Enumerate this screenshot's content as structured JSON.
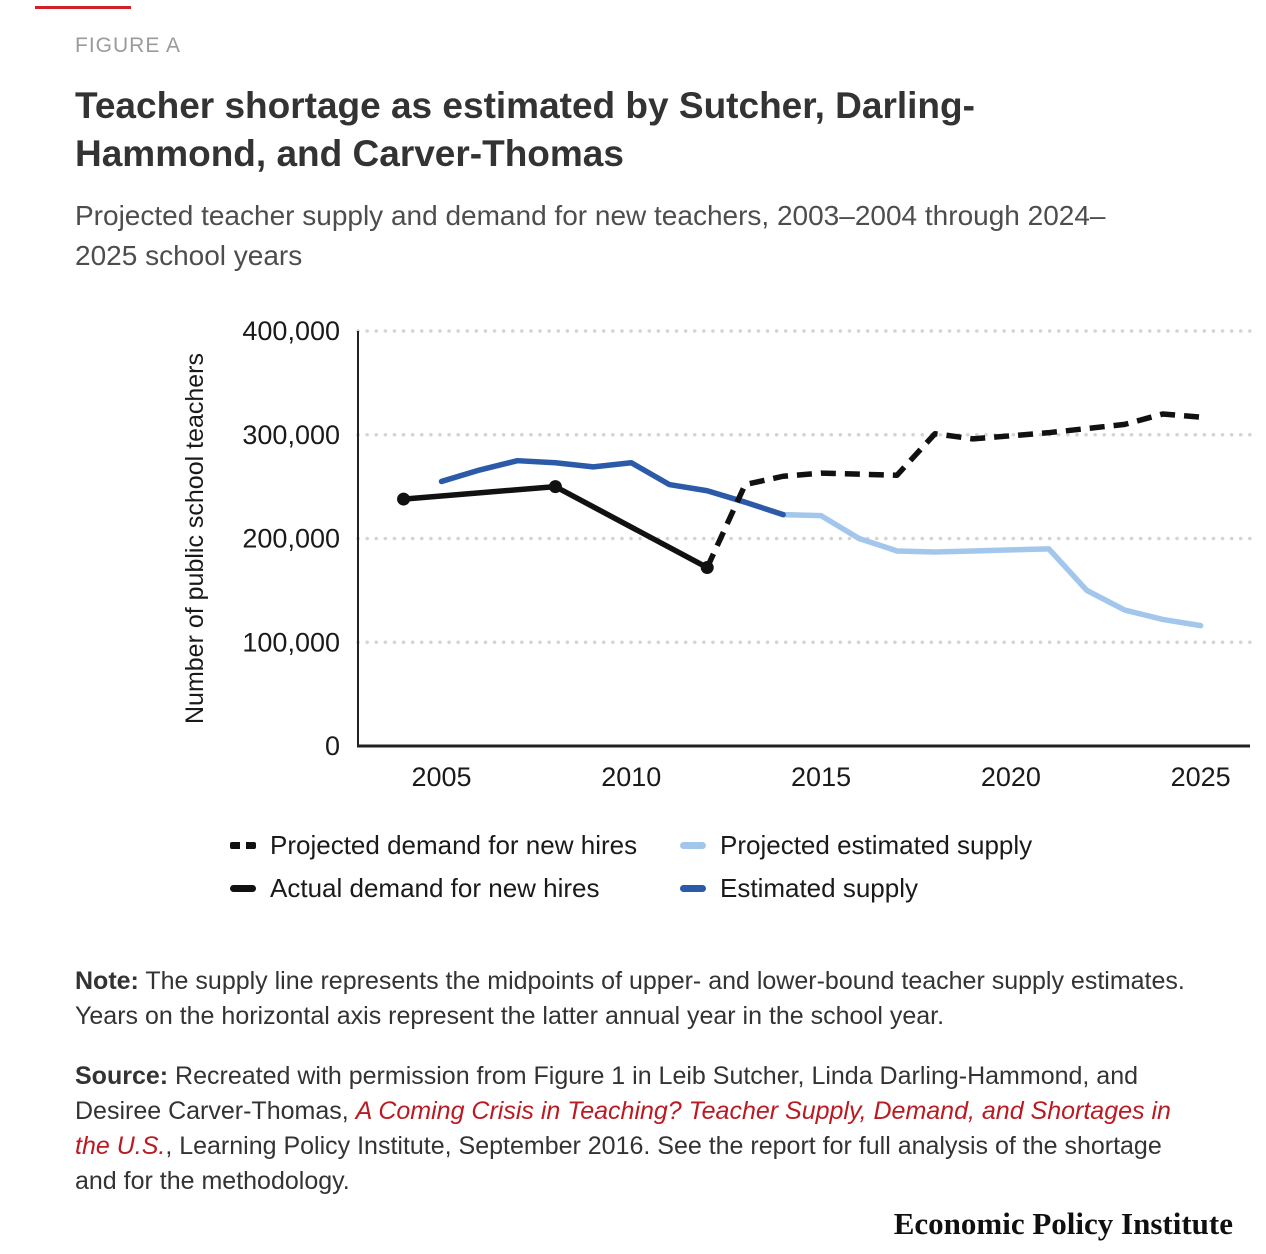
{
  "page": {
    "figure_label": "FIGURE A",
    "title": "Teacher shortage as estimated by Sutcher, Darling-Hammond, and Carver-Thomas",
    "subtitle": "Projected teacher supply and demand for new teachers, 2003–2004 through 2024–2025 school years",
    "footer_brand": "Economic Policy Institute"
  },
  "colors": {
    "accent_red": "#d0202a",
    "link_red": "#bb1a22",
    "axis_text": "#1a1a1a",
    "gridline": "#d4d4d4"
  },
  "note": {
    "label": "Note:",
    "text": " The supply line represents the midpoints of upper- and lower-bound teacher supply estimates. Years on the horizontal axis represent the latter annual year in the school year."
  },
  "source": {
    "label": "Source:",
    "pre_link": " Recreated with permission from Figure 1 in Leib Sutcher, Linda Darling-Hammond, and Desiree Carver-Thomas, ",
    "link": "A Coming Crisis in Teaching? Teacher Supply, Demand, and Shortages in the U.S.",
    "post_link": ", Learning Policy Institute, September 2016. See the report for full analysis of the shortage and for the methodology."
  },
  "chart_data": {
    "type": "line",
    "title": "",
    "xlabel": "",
    "ylabel": "Number of public school teachers",
    "xlim": [
      2002.8,
      2026.3
    ],
    "ylim": [
      0,
      400000
    ],
    "grid": "dotted-horizontal",
    "legend_position": "bottom",
    "draw_order": [
      2,
      3,
      0,
      1
    ],
    "yticks": [
      {
        "value": 400000,
        "label": "400,000"
      },
      {
        "value": 300000,
        "label": "300,000"
      },
      {
        "value": 200000,
        "label": "200,000"
      },
      {
        "value": 100000,
        "label": "100,000"
      },
      {
        "value": 0,
        "label": "0"
      }
    ],
    "xticks": [
      {
        "value": 2005,
        "label": "2005"
      },
      {
        "value": 2010,
        "label": "2010"
      },
      {
        "value": 2015,
        "label": "2015"
      },
      {
        "value": 2020,
        "label": "2020"
      },
      {
        "value": 2025,
        "label": "2025"
      }
    ],
    "series": [
      {
        "name": "Projected demand for new hires",
        "color": "#111111",
        "style": "dashed",
        "x": [
          2012,
          2013,
          2014,
          2015,
          2016,
          2017,
          2018,
          2019,
          2020,
          2021,
          2022,
          2023,
          2024,
          2025
        ],
        "y": [
          172000,
          252000,
          260000,
          263000,
          262000,
          261000,
          301000,
          296000,
          299000,
          302000,
          306000,
          310000,
          320000,
          317000
        ]
      },
      {
        "name": "Actual demand for new hires",
        "color": "#111111",
        "style": "solid",
        "markers": true,
        "x": [
          2004,
          2008,
          2012
        ],
        "y": [
          238000,
          250000,
          172000
        ]
      },
      {
        "name": "Projected estimated supply",
        "color": "#a3c7ec",
        "style": "solid",
        "x": [
          2014,
          2015,
          2016,
          2017,
          2018,
          2019,
          2020,
          2021,
          2022,
          2023,
          2024,
          2025
        ],
        "y": [
          223000,
          222000,
          200000,
          188000,
          187000,
          188000,
          189000,
          190000,
          150000,
          131000,
          122000,
          116000
        ]
      },
      {
        "name": "Estimated supply",
        "color": "#2b5ba8",
        "style": "solid",
        "x": [
          2005,
          2006,
          2007,
          2008,
          2009,
          2010,
          2011,
          2012,
          2013,
          2014
        ],
        "y": [
          255000,
          266000,
          275000,
          273000,
          269000,
          273000,
          252000,
          246000,
          235000,
          223000
        ]
      }
    ]
  }
}
